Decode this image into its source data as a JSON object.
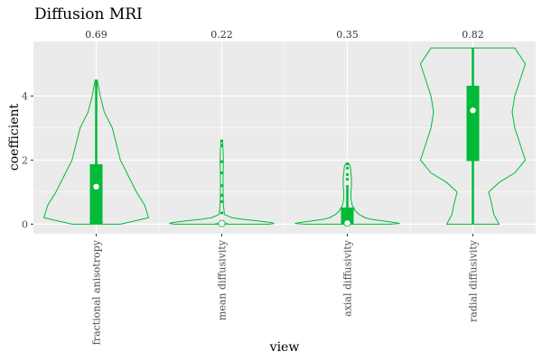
{
  "chart_data": {
    "type": "violin",
    "title": "Diffusion MRI",
    "xlabel": "view",
    "ylabel": "coefficient",
    "ylim": [
      -0.3,
      5.7
    ],
    "yticks": [
      0,
      2,
      4
    ],
    "grid": true,
    "colors": {
      "violin": "#00BA38",
      "panel": "#EBEBEB",
      "grid": "#FFFFFF"
    },
    "categories": [
      "fractional anisotropy",
      "mean diffusivity",
      "axial diffusivity",
      "radial diffusivity"
    ],
    "annotations": [
      "0.69",
      "0.22",
      "0.35",
      "0.82"
    ],
    "series": [
      {
        "category": "fractional anisotropy",
        "profile": [
          [
            0,
            0.12
          ],
          [
            0.2,
            0.26
          ],
          [
            0.6,
            0.24
          ],
          [
            1.0,
            0.2
          ],
          [
            1.5,
            0.16
          ],
          [
            2.0,
            0.12
          ],
          [
            2.5,
            0.1
          ],
          [
            3.0,
            0.08
          ],
          [
            3.5,
            0.04
          ],
          [
            4.0,
            0.02
          ],
          [
            4.5,
            0.005
          ]
        ],
        "q1": 0.0,
        "median": 1.17,
        "q3": 1.87,
        "whisker_low": 0.0,
        "whisker_high": 4.5,
        "outliers": []
      },
      {
        "category": "mean diffusivity",
        "profile": [
          [
            0,
            0.72
          ],
          [
            0.02,
            0.8
          ],
          [
            0.05,
            0.75
          ],
          [
            0.1,
            0.55
          ],
          [
            0.15,
            0.32
          ],
          [
            0.2,
            0.16
          ],
          [
            0.3,
            0.04
          ],
          [
            0.6,
            0.025
          ],
          [
            1.0,
            0.02
          ],
          [
            1.5,
            0.02
          ],
          [
            2.0,
            0.025
          ],
          [
            2.3,
            0.02
          ],
          [
            2.6,
            0.01
          ]
        ],
        "q1": 0.0,
        "median": 0.02,
        "q3": 0.03,
        "whisker_low": 0.0,
        "whisker_high": 0.05,
        "outliers": [
          0.35,
          0.7,
          0.9,
          1.2,
          1.6,
          1.95,
          2.45,
          2.6
        ]
      },
      {
        "category": "axial diffusivity",
        "profile": [
          [
            0,
            0.72
          ],
          [
            0.02,
            0.88
          ],
          [
            0.05,
            0.8
          ],
          [
            0.1,
            0.6
          ],
          [
            0.15,
            0.4
          ],
          [
            0.2,
            0.3
          ],
          [
            0.3,
            0.2
          ],
          [
            0.4,
            0.14
          ],
          [
            0.6,
            0.08
          ],
          [
            0.8,
            0.06
          ],
          [
            1.0,
            0.06
          ],
          [
            1.2,
            0.07
          ],
          [
            1.4,
            0.07
          ],
          [
            1.6,
            0.06
          ],
          [
            1.8,
            0.05
          ],
          [
            1.9,
            0.02
          ]
        ],
        "q1": 0.0,
        "median": 0.03,
        "q3": 0.52,
        "whisker_low": 0.0,
        "whisker_high": 1.22,
        "outliers": [
          1.4,
          1.55,
          1.75,
          1.88
        ]
      },
      {
        "category": "radial diffusivity",
        "profile": [
          [
            0,
            0.05
          ],
          [
            0.3,
            0.04
          ],
          [
            0.7,
            0.035
          ],
          [
            1.0,
            0.03
          ],
          [
            1.3,
            0.05
          ],
          [
            1.6,
            0.08
          ],
          [
            2.0,
            0.1
          ],
          [
            2.5,
            0.09
          ],
          [
            3.0,
            0.08
          ],
          [
            3.5,
            0.075
          ],
          [
            4.0,
            0.08
          ],
          [
            4.5,
            0.09
          ],
          [
            5.0,
            0.1
          ],
          [
            5.5,
            0.08
          ]
        ],
        "q1": 1.97,
        "median": 3.55,
        "q3": 4.32,
        "whisker_low": 0.0,
        "whisker_high": 5.5,
        "outliers": []
      }
    ]
  }
}
